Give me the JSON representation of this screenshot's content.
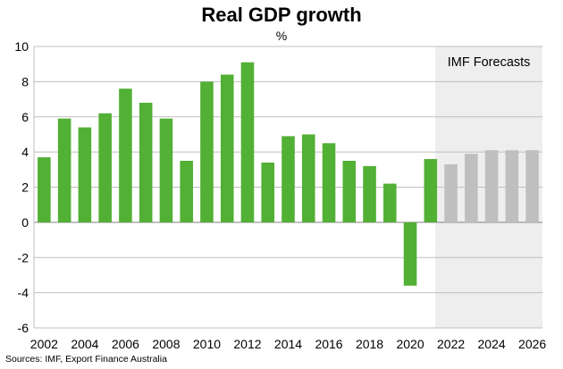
{
  "chart_data": {
    "type": "bar",
    "title": "Real GDP growth",
    "ylabel": "%",
    "xlabel": "",
    "ylim": [
      -6,
      10
    ],
    "yticks": [
      -6,
      -4,
      -2,
      0,
      2,
      4,
      6,
      8,
      10
    ],
    "xtick_labels": [
      "2002",
      "2004",
      "2006",
      "2008",
      "2010",
      "2012",
      "2014",
      "2016",
      "2018",
      "2020",
      "2022",
      "2024",
      "2026"
    ],
    "categories": [
      "2002",
      "2003",
      "2004",
      "2005",
      "2006",
      "2007",
      "2008",
      "2009",
      "2010",
      "2011",
      "2012",
      "2013",
      "2014",
      "2015",
      "2016",
      "2017",
      "2018",
      "2019",
      "2020",
      "2021",
      "2022",
      "2023",
      "2024",
      "2025",
      "2026"
    ],
    "series": [
      {
        "values": [
          3.7,
          5.9,
          5.4,
          6.2,
          7.6,
          6.8,
          5.9,
          3.5,
          8.0,
          8.4,
          9.1,
          3.4,
          4.9,
          5.0,
          4.5,
          3.5,
          3.2,
          2.2,
          -3.6,
          3.6,
          3.3,
          3.9,
          4.1,
          4.1,
          4.1
        ],
        "color": "#52b034"
      }
    ],
    "forecast": {
      "label": "IMF Forecasts",
      "from": "2022",
      "to": "2026",
      "bar_color": "#bfbfbf",
      "band_color": "#eeeeee"
    },
    "grid": true,
    "source": "Sources: IMF, Export Finance Australia"
  }
}
